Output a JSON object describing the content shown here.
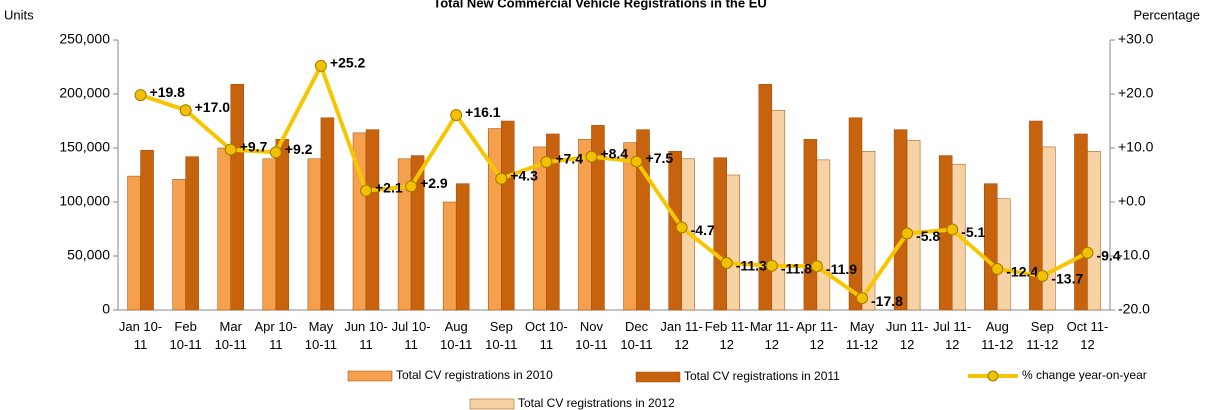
{
  "chart_data": {
    "type": "bar_line",
    "title": "Total New Commercial Vehicle Registrations in the EU",
    "y_label": "Units",
    "y2_label": "Percentage",
    "categories": [
      "Jan 10-11",
      "Feb 10-11",
      "Mar 10-11",
      "Apr 10-11",
      "May 10-11",
      "Jun 10-11",
      "Jul 10-11",
      "Aug 10-11",
      "Sep 10-11",
      "Oct 10-11",
      "Nov 10-11",
      "Dec 10-11",
      "Jan 11-12",
      "Feb 11-12",
      "Mar 11-12",
      "Apr 11-12",
      "May 11-12",
      "Jun 11-12",
      "Jul 11-12",
      "Aug 11-12",
      "Sep 11-12",
      "Oct 11-12"
    ],
    "series": [
      {
        "name": "Total CV registrations in 2010",
        "kind": "bar",
        "color": "#f4a04c",
        "values": [
          124000,
          121000,
          150000,
          140000,
          140000,
          164000,
          140000,
          100000,
          168000,
          151000,
          158000,
          155000,
          null,
          null,
          null,
          null,
          null,
          null,
          null,
          null,
          null,
          null
        ]
      },
      {
        "name": "Total CV registrations in 2011",
        "kind": "bar",
        "color": "#c7620e",
        "values": [
          148000,
          142000,
          209000,
          158000,
          178000,
          167000,
          143000,
          117000,
          175000,
          163000,
          171000,
          167000,
          147000,
          141000,
          209000,
          158000,
          178000,
          167000,
          143000,
          117000,
          175000,
          163000
        ]
      },
      {
        "name": "Total CV registrations in 2012",
        "kind": "bar",
        "color": "#f6d2a4",
        "values": [
          null,
          null,
          null,
          null,
          null,
          null,
          null,
          null,
          null,
          null,
          null,
          null,
          140000,
          125000,
          185000,
          139000,
          147000,
          157000,
          135000,
          103000,
          151000,
          147000
        ]
      },
      {
        "name": "% change year-on-year",
        "kind": "line",
        "axis": "y2",
        "color": "#f7c600",
        "values": [
          19.8,
          17.0,
          9.7,
          9.2,
          25.2,
          2.1,
          2.9,
          16.1,
          4.3,
          7.4,
          8.4,
          7.5,
          -4.7,
          -11.3,
          -11.8,
          -11.9,
          -17.8,
          -5.8,
          -5.1,
          -12.4,
          -13.7,
          -9.4
        ],
        "value_labels": [
          "+19.8",
          "+17.0",
          "+9.7",
          "+9.2",
          "+25.2",
          "+2.1",
          "+2.9",
          "+16.1",
          "+4.3",
          "+7.4",
          "+8.4",
          "+7.5",
          "-4.7",
          "-11.3",
          "-11.8",
          "-11.9",
          "-17.8",
          "-5.8",
          "-5.1",
          "-12.4",
          "-13.7",
          "-9.4"
        ]
      }
    ],
    "ylim": [
      0,
      250000
    ],
    "yticks": [
      0,
      {
        "value": 50000,
        "label": "50,000"
      },
      {
        "value": 100000,
        "label": "100,000"
      },
      {
        "value": 150000,
        "label": "150,000"
      },
      {
        "value": 200000,
        "label": "200,000"
      },
      {
        "value": 250000,
        "label": "250,000"
      }
    ],
    "y2lim": [
      -20,
      30
    ],
    "y2ticks": [
      {
        "value": -20,
        "label": "-20.0"
      },
      {
        "value": -10,
        "label": "-10.0"
      },
      {
        "value": 0,
        "label": "+0.0"
      },
      {
        "value": 10,
        "label": "+10.0"
      },
      {
        "value": 20,
        "label": "+20.0"
      },
      {
        "value": 30,
        "label": "+30.0"
      }
    ],
    "grid": false,
    "legend": "bottom"
  }
}
